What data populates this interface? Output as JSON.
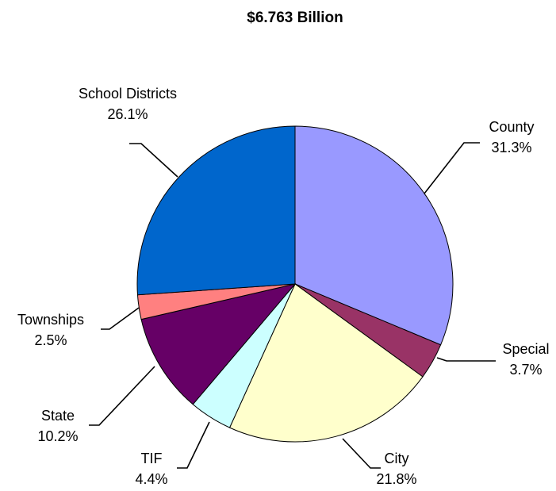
{
  "chart_data": {
    "type": "pie",
    "title": "$6.763 Billion",
    "slices": [
      {
        "name": "County",
        "percent_label": "31.3%",
        "value": 31.3,
        "color": "#9999FF"
      },
      {
        "name": "Special",
        "percent_label": "3.7%",
        "value": 3.7,
        "color": "#993366"
      },
      {
        "name": "City",
        "percent_label": "21.8%",
        "value": 21.8,
        "color": "#FFFFCC"
      },
      {
        "name": "TIF",
        "percent_label": "4.4%",
        "value": 4.4,
        "color": "#CCFFFF"
      },
      {
        "name": "State",
        "percent_label": "10.2%",
        "value": 10.2,
        "color": "#660066"
      },
      {
        "name": "Townships",
        "percent_label": "2.5%",
        "value": 2.5,
        "color": "#FF8080"
      },
      {
        "name": "School Districts",
        "percent_label": "26.1%",
        "value": 26.1,
        "color": "#0066CC"
      }
    ],
    "start_angle_deg": 0,
    "direction": "clockwise",
    "legend": "none",
    "data_labels": "outside-with-leader-lines"
  }
}
